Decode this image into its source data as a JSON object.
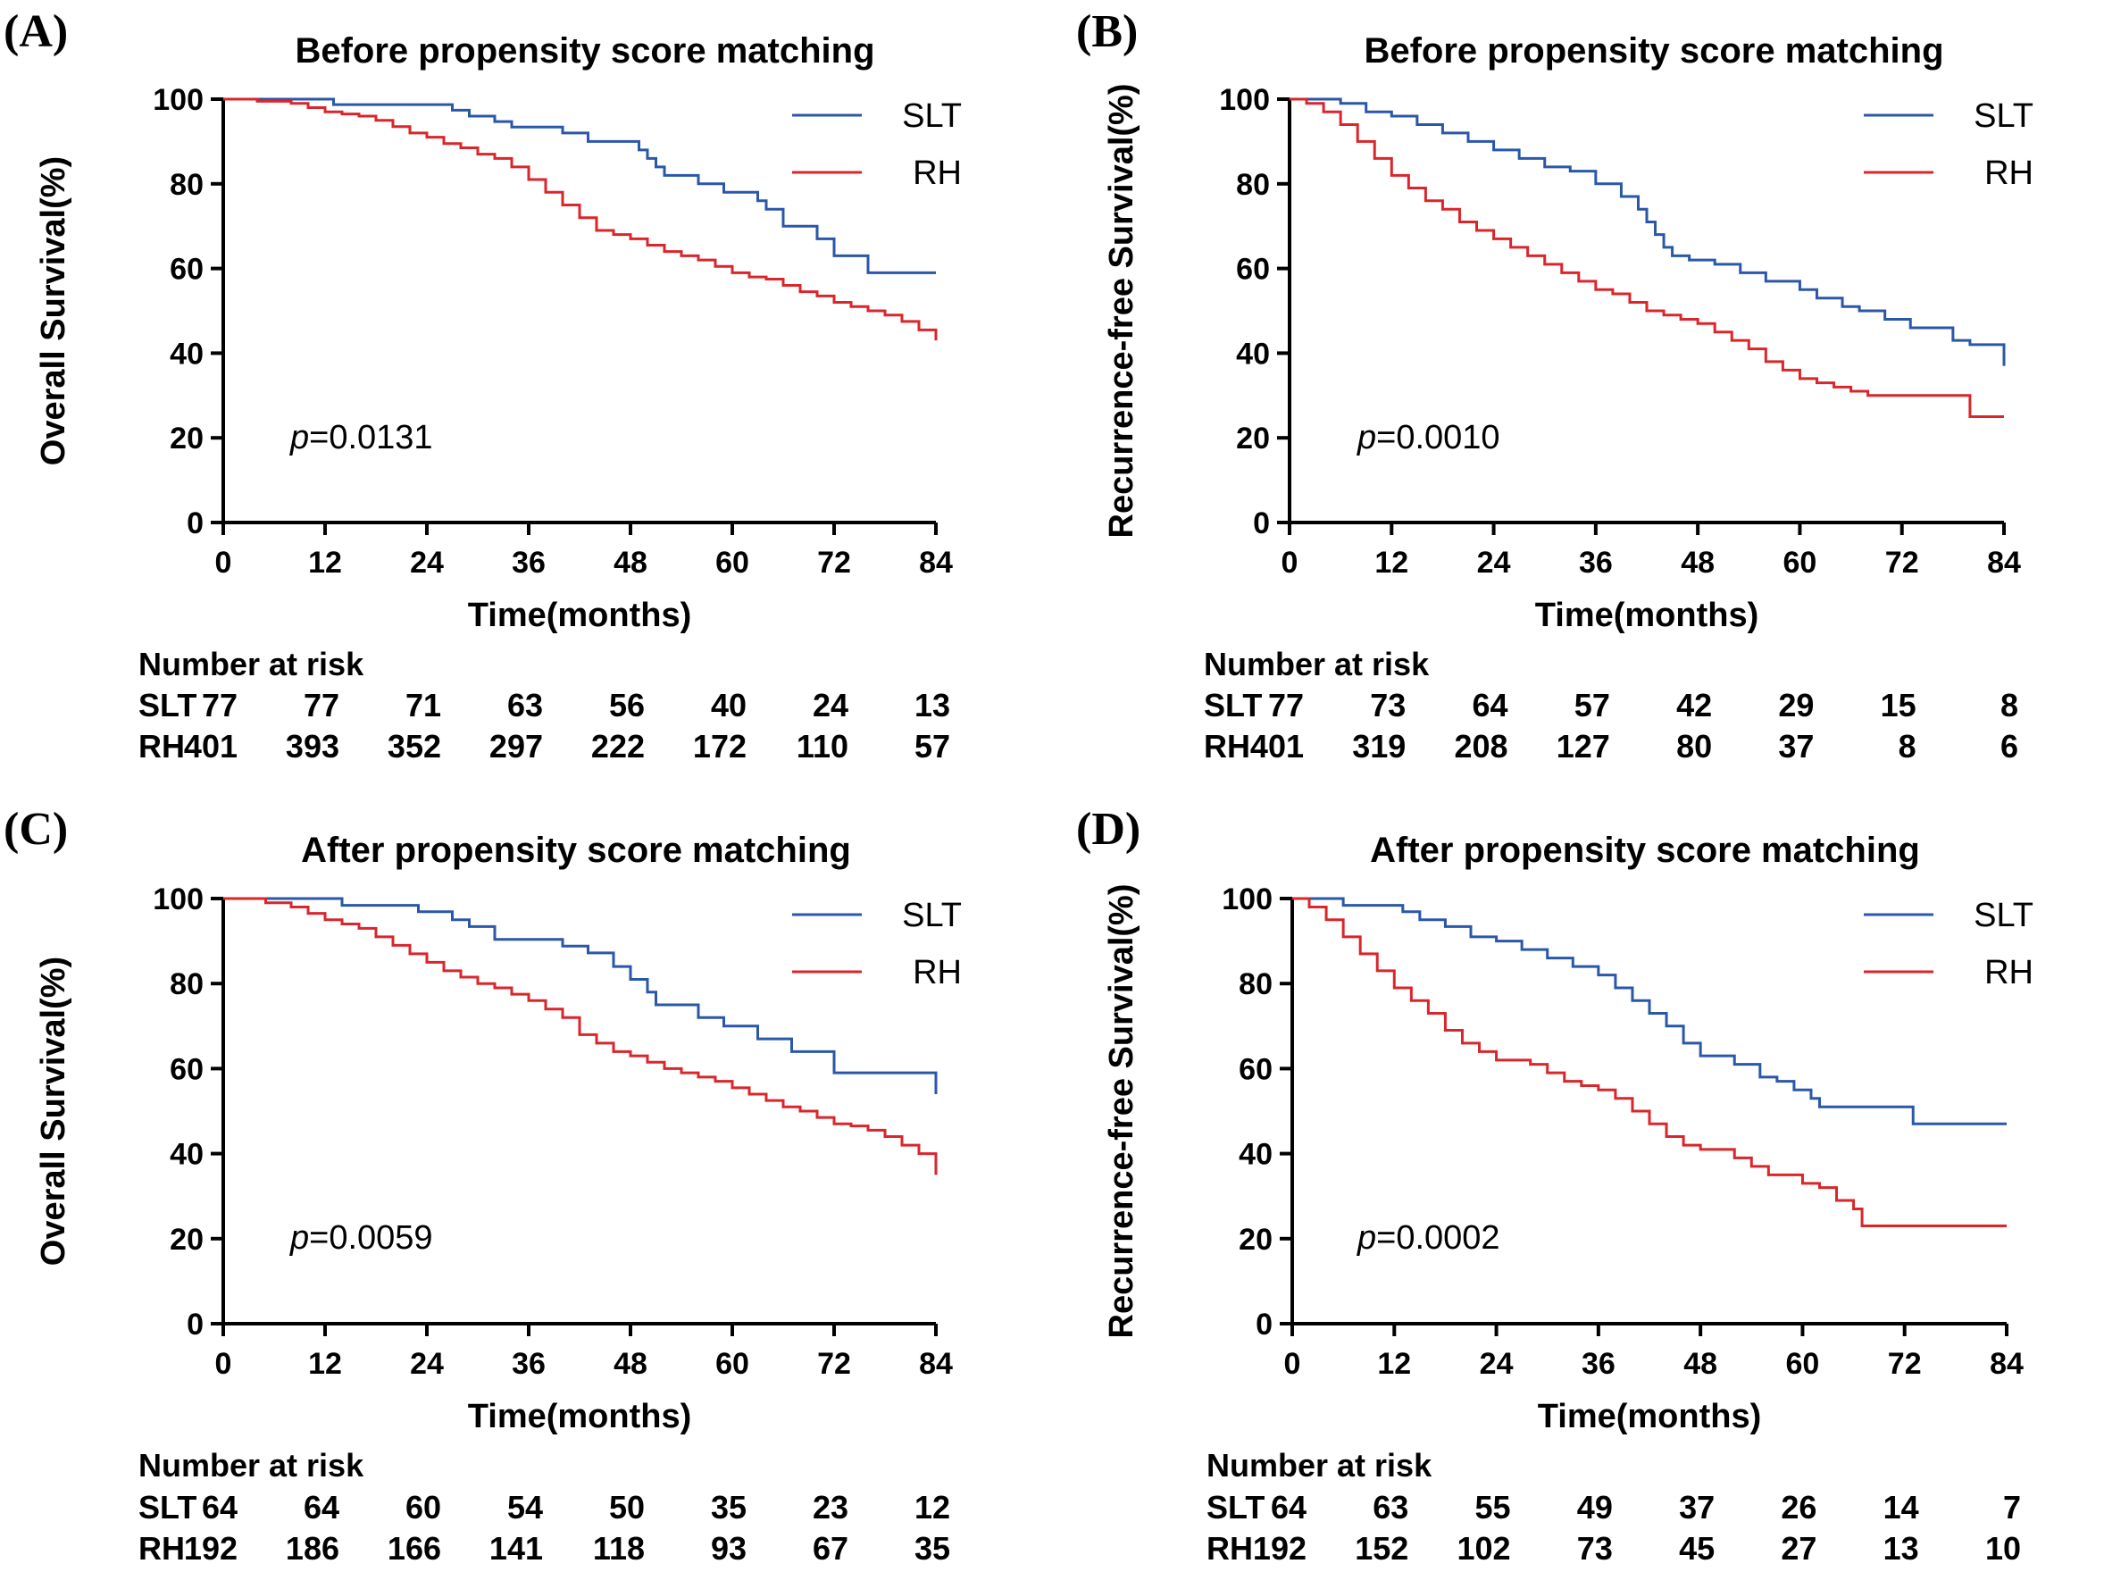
{
  "colors": {
    "slt": "#2b57a8",
    "rh": "#d9262b",
    "axis": "#000000"
  },
  "risk_header": "Number at risk",
  "chart_data": [
    {
      "type": "line",
      "panel": "(A)",
      "title": "Before propensity score matching",
      "xlabel": "Time(months)",
      "ylabel": "Overall Survival(%)",
      "xlim": [
        0,
        84
      ],
      "ylim": [
        0,
        100
      ],
      "xticks": [
        "0",
        "12",
        "24",
        "36",
        "48",
        "60",
        "72",
        "84"
      ],
      "yticks": [
        "0",
        "20",
        "40",
        "60",
        "80",
        "100"
      ],
      "legend": [
        "SLT",
        "RH"
      ],
      "pvalue_prefix": "p",
      "pvalue_text": "=0.0131",
      "series": [
        {
          "name": "SLT",
          "x": [
            0,
            13,
            27,
            29,
            32,
            34,
            40,
            43,
            49,
            50,
            51,
            52,
            56,
            59,
            63,
            64,
            66,
            70,
            72,
            76,
            84
          ],
          "y": [
            100,
            98.7,
            97.4,
            96,
            94.7,
            93.4,
            92,
            90,
            88,
            86,
            84,
            82,
            80,
            78,
            76,
            74,
            70,
            67,
            63,
            59,
            59
          ]
        },
        {
          "name": "RH",
          "x": [
            0,
            4,
            8,
            10,
            12,
            14,
            16,
            18,
            20,
            22,
            24,
            26,
            28,
            30,
            32,
            34,
            36,
            38,
            40,
            42,
            44,
            46,
            48,
            50,
            52,
            54,
            56,
            58,
            60,
            62,
            64,
            66,
            68,
            70,
            72,
            74,
            76,
            78,
            80,
            82,
            84
          ],
          "y": [
            100,
            99.5,
            99,
            98,
            97,
            96.5,
            96,
            95,
            93.5,
            92,
            91,
            89.5,
            88.5,
            87,
            86,
            84,
            81,
            78,
            75,
            72,
            69,
            68,
            67,
            65.5,
            64,
            63,
            62,
            60.5,
            59,
            58,
            57.5,
            56,
            54.5,
            53.5,
            52,
            51,
            50,
            49,
            47.5,
            45.5,
            43
          ]
        }
      ],
      "risk_table": [
        {
          "label": "SLT",
          "values": [
            "77",
            "77",
            "71",
            "63",
            "56",
            "40",
            "24",
            "13"
          ]
        },
        {
          "label": "RH",
          "values": [
            "401",
            "393",
            "352",
            "297",
            "222",
            "172",
            "110",
            "57"
          ]
        }
      ]
    },
    {
      "type": "line",
      "panel": "(B)",
      "title": "Before propensity score matching",
      "xlabel": "Time(months)",
      "ylabel": "Recurrence-free Survival(%)",
      "xlim": [
        0,
        84
      ],
      "ylim": [
        0,
        100
      ],
      "xticks": [
        "0",
        "12",
        "24",
        "36",
        "48",
        "60",
        "72",
        "84"
      ],
      "yticks": [
        "0",
        "20",
        "40",
        "60",
        "80",
        "100"
      ],
      "legend": [
        "SLT",
        "RH"
      ],
      "pvalue_prefix": "p",
      "pvalue_text": "=0.0010",
      "series": [
        {
          "name": "SLT",
          "x": [
            0,
            6,
            9,
            12,
            15,
            18,
            21,
            24,
            27,
            30,
            33,
            36,
            39,
            41,
            42,
            43,
            44,
            45,
            47,
            50,
            53,
            56,
            60,
            62,
            65,
            67,
            70,
            73,
            76,
            78,
            80,
            84,
            84
          ],
          "y": [
            100,
            99,
            97,
            96,
            94,
            92,
            90,
            88,
            86,
            84,
            83,
            80,
            77,
            74,
            71,
            68,
            65,
            63,
            62,
            61,
            59,
            57,
            55,
            53,
            51,
            50,
            48,
            46,
            46,
            43,
            42,
            42,
            37
          ]
        },
        {
          "name": "RH",
          "x": [
            0,
            2,
            4,
            6,
            8,
            10,
            12,
            14,
            16,
            18,
            20,
            22,
            24,
            26,
            28,
            30,
            32,
            34,
            36,
            38,
            40,
            42,
            44,
            46,
            48,
            50,
            52,
            54,
            56,
            58,
            60,
            62,
            64,
            66,
            68,
            70,
            75,
            80,
            80,
            84
          ],
          "y": [
            100,
            99,
            97,
            94,
            90,
            86,
            82,
            79,
            76,
            74,
            71,
            69,
            67,
            65,
            63,
            61,
            59,
            57,
            55,
            54,
            52,
            50,
            49,
            48,
            47,
            45,
            43,
            41,
            38,
            36,
            34,
            33,
            32,
            31,
            30,
            30,
            30,
            30,
            25,
            25
          ]
        }
      ],
      "risk_table": [
        {
          "label": "SLT",
          "values": [
            "77",
            "73",
            "64",
            "57",
            "42",
            "29",
            "15",
            "8"
          ]
        },
        {
          "label": "RH",
          "values": [
            "401",
            "319",
            "208",
            "127",
            "80",
            "37",
            "8",
            "6"
          ]
        }
      ]
    },
    {
      "type": "line",
      "panel": "(C)",
      "title": "After propensity score matching",
      "xlabel": "Time(months)",
      "ylabel": "Overall Survival(%)",
      "xlim": [
        0,
        84
      ],
      "ylim": [
        0,
        100
      ],
      "xticks": [
        "0",
        "12",
        "24",
        "36",
        "48",
        "60",
        "72",
        "84"
      ],
      "yticks": [
        "0",
        "20",
        "40",
        "60",
        "80",
        "100"
      ],
      "legend": [
        "SLT",
        "RH"
      ],
      "pvalue_prefix": "p",
      "pvalue_text": "=0.0059",
      "series": [
        {
          "name": "SLT",
          "x": [
            0,
            14,
            23,
            27,
            29,
            32,
            36,
            40,
            43,
            46,
            48,
            50,
            51,
            52,
            56,
            59,
            63,
            67,
            72,
            76,
            83,
            84
          ],
          "y": [
            100,
            98.4,
            96.9,
            95,
            93.4,
            90.4,
            90.4,
            88.8,
            87.2,
            84,
            81,
            78,
            75,
            75,
            72,
            70,
            67,
            64,
            59,
            59,
            59,
            54
          ]
        },
        {
          "name": "RH",
          "x": [
            0,
            5,
            8,
            10,
            12,
            14,
            16,
            18,
            20,
            22,
            24,
            26,
            28,
            30,
            32,
            34,
            36,
            38,
            40,
            42,
            44,
            46,
            48,
            50,
            52,
            54,
            56,
            58,
            60,
            62,
            64,
            66,
            68,
            70,
            72,
            74,
            76,
            78,
            80,
            82,
            84
          ],
          "y": [
            100,
            99,
            98,
            96.5,
            95,
            94,
            93,
            91,
            89,
            87,
            85,
            83,
            81.5,
            80,
            79,
            77.5,
            76,
            74,
            72,
            68,
            66,
            64,
            63,
            61.5,
            60,
            59,
            58,
            57,
            55.5,
            54,
            52.5,
            51,
            50,
            48.5,
            47,
            46.5,
            45.5,
            44,
            42,
            40,
            35
          ]
        }
      ],
      "risk_table": [
        {
          "label": "SLT",
          "values": [
            "64",
            "64",
            "60",
            "54",
            "50",
            "35",
            "23",
            "12"
          ]
        },
        {
          "label": "RH",
          "values": [
            "192",
            "186",
            "166",
            "141",
            "118",
            "93",
            "67",
            "35"
          ]
        }
      ]
    },
    {
      "type": "line",
      "panel": "(D)",
      "title": "After propensity score matching",
      "xlabel": "Time(months)",
      "ylabel": "Recurrence-free Survival(%)",
      "xlim": [
        0,
        84
      ],
      "ylim": [
        0,
        100
      ],
      "xticks": [
        "0",
        "12",
        "24",
        "36",
        "48",
        "60",
        "72",
        "84"
      ],
      "yticks": [
        "0",
        "20",
        "40",
        "60",
        "80",
        "100"
      ],
      "legend": [
        "SLT",
        "RH"
      ],
      "pvalue_prefix": "p",
      "pvalue_text": "=0.0002",
      "series": [
        {
          "name": "SLT",
          "x": [
            0,
            6,
            13,
            15,
            18,
            21,
            24,
            27,
            30,
            33,
            36,
            38,
            40,
            42,
            44,
            46,
            48,
            52,
            55,
            57,
            59,
            61,
            62,
            66,
            73,
            73,
            84
          ],
          "y": [
            100,
            98.4,
            96.9,
            95,
            93.4,
            91,
            90,
            88,
            86,
            84,
            82,
            79,
            76,
            73,
            70,
            66,
            63,
            61,
            58,
            57,
            55,
            53,
            51,
            51,
            51,
            47,
            47
          ]
        },
        {
          "name": "RH",
          "x": [
            0,
            2,
            4,
            6,
            8,
            10,
            12,
            14,
            16,
            18,
            20,
            22,
            24,
            26,
            28,
            30,
            32,
            34,
            36,
            38,
            40,
            42,
            44,
            46,
            48,
            50,
            52,
            54,
            56,
            58,
            60,
            62,
            64,
            66,
            67,
            84
          ],
          "y": [
            100,
            98,
            95,
            91,
            87,
            83,
            79,
            76,
            73,
            69,
            66,
            64,
            62,
            62,
            61,
            59,
            57,
            56,
            55,
            53,
            50,
            47,
            44,
            42,
            41,
            41,
            39,
            37,
            35,
            35,
            33,
            32,
            29,
            27,
            23,
            23
          ]
        }
      ],
      "risk_table": [
        {
          "label": "SLT",
          "values": [
            "64",
            "63",
            "55",
            "49",
            "37",
            "26",
            "14",
            "7"
          ]
        },
        {
          "label": "RH",
          "values": [
            "192",
            "152",
            "102",
            "73",
            "45",
            "27",
            "13",
            "10"
          ]
        }
      ]
    }
  ]
}
